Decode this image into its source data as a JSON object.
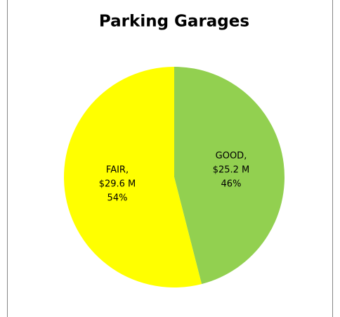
{
  "chart_data": {
    "type": "pie",
    "title": "Parking Garages",
    "categories": [
      "GOOD,",
      "FAIR,"
    ],
    "amounts": [
      "$25.2 M",
      "$29.6 M"
    ],
    "values": [
      46,
      54
    ],
    "value_labels": [
      "46%",
      "54%"
    ],
    "colors": [
      "#92d050",
      "#ffff00"
    ]
  }
}
